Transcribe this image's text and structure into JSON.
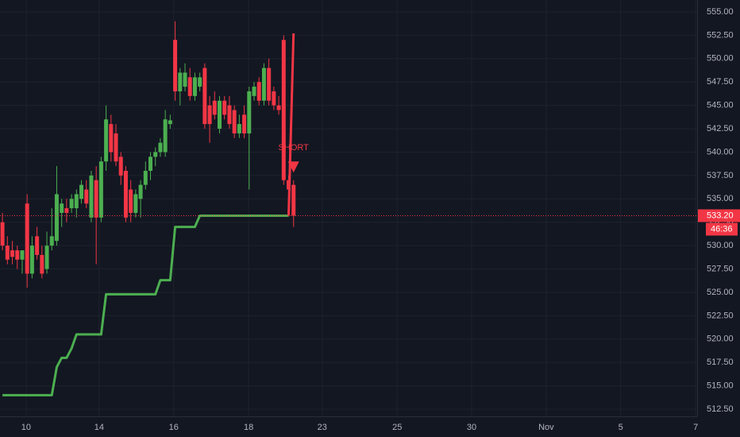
{
  "chart_data": {
    "type": "candlestick",
    "xlim": [
      0,
      141.3
    ],
    "ylim": [
      511.74,
      556.27
    ],
    "x": [
      0.5,
      1.5,
      2.5,
      3.5,
      4.5,
      5.5,
      6.5,
      7.5,
      8.5,
      9.5,
      10.5,
      11.5,
      12.5,
      13.5,
      14.5,
      15.5,
      16.5,
      17.5,
      18.5,
      19.5,
      20.5,
      21.5,
      22.5,
      23.5,
      24.5,
      25.5,
      26.5,
      27.5,
      28.5,
      29.5,
      30.5,
      31.5,
      32.5,
      33.5,
      34.5,
      35.5,
      36.5,
      37.5,
      38.5,
      39.5,
      40.5,
      41.5,
      42.5,
      43.5,
      44.5,
      45.5,
      46.5,
      47.5,
      48.5,
      49.5,
      50.5,
      51.5,
      52.5,
      53.5,
      54.5,
      55.5,
      56.5,
      57.5,
      58.5,
      59.5
    ],
    "open": [
      532.5,
      530,
      529.5,
      529.5,
      528.5,
      534.5,
      527,
      531,
      529,
      527.5,
      530,
      530.5,
      533.5,
      534,
      534,
      534,
      535,
      536,
      533,
      537,
      533,
      539,
      543,
      542,
      539.5,
      538,
      536,
      533.5,
      535,
      536.5,
      538,
      539.5,
      540,
      540,
      543,
      552,
      546.5,
      547,
      548,
      546,
      547,
      549,
      545,
      545.5,
      542.5,
      545.5,
      545,
      544.5,
      542,
      544,
      542,
      546,
      547.5,
      545.5,
      549,
      546.5,
      545,
      552,
      537,
      536.5
    ],
    "high": [
      533.5,
      531,
      530.5,
      530,
      529.5,
      535.5,
      531,
      532,
      530,
      531.5,
      534,
      538.5,
      535,
      535,
      535.5,
      536,
      537,
      537,
      538,
      538.5,
      539.5,
      545,
      544,
      543,
      540,
      538.5,
      537,
      536,
      537,
      539,
      540,
      540.5,
      541.5,
      544.5,
      544,
      554,
      549,
      549.5,
      549,
      548.5,
      548.5,
      549.5,
      546,
      546.5,
      546,
      546,
      546,
      545,
      544,
      545,
      547,
      547.5,
      548,
      549.5,
      550,
      547,
      546,
      552.5,
      537.5,
      537
    ],
    "low": [
      529.5,
      528,
      528,
      527.5,
      527,
      525.5,
      526.5,
      528.5,
      526.5,
      527,
      529.5,
      530,
      532,
      532.5,
      533.5,
      533,
      534.5,
      534,
      532.5,
      528,
      532.5,
      538,
      539,
      538.5,
      536.5,
      532.5,
      532.5,
      533,
      533,
      536,
      537,
      538.5,
      539.5,
      539.5,
      542.5,
      545.5,
      545,
      546.5,
      545.5,
      545.5,
      546.5,
      542.5,
      541,
      543.5,
      542,
      543.5,
      542.5,
      541.5,
      541.5,
      541.5,
      536,
      545.5,
      545,
      545,
      545,
      544.5,
      544,
      536.5,
      535.5,
      532
    ],
    "close": [
      530,
      528.5,
      528.8,
      528.5,
      529.5,
      527,
      530,
      529,
      527,
      530,
      531,
      535.5,
      534.5,
      533.5,
      535,
      535.5,
      536.5,
      534.5,
      537.5,
      533,
      539,
      543.5,
      540,
      539,
      537.5,
      533,
      533.5,
      535.5,
      536.5,
      538,
      539.5,
      540,
      541,
      543.5,
      543.4,
      546.5,
      548.5,
      548.5,
      546,
      548,
      548,
      543,
      543,
      544,
      545.5,
      544,
      543,
      542,
      543,
      542,
      546.5,
      547,
      545.5,
      549,
      545.5,
      545,
      544.5,
      537,
      536,
      533.2
    ],
    "up_color": "#4caf50",
    "down_color": "#f23645",
    "series": [
      {
        "color": "#4caf50",
        "values": [
          514,
          514,
          514,
          514,
          514,
          514,
          514,
          514,
          514,
          514,
          514,
          517,
          518,
          518,
          519,
          520.5,
          520.5,
          520.5,
          520.5,
          520.5,
          520.5,
          524.8,
          524.8,
          524.8,
          524.8,
          524.8,
          524.8,
          524.8,
          524.8,
          524.8,
          524.8,
          524.8,
          526.3,
          526.3,
          526.3,
          532,
          532,
          532,
          532,
          532,
          533.2,
          533.2,
          533.2,
          533.2,
          533.2,
          533.2,
          533.2,
          533.2,
          533.2,
          533.2,
          533.2,
          533.2,
          533.2,
          533.2,
          533.2,
          533.2,
          533.2,
          533.2,
          533.2,
          null
        ]
      },
      {
        "color": "#f23645",
        "values": [
          null,
          null,
          null,
          null,
          null,
          null,
          null,
          null,
          null,
          null,
          null,
          null,
          null,
          null,
          null,
          null,
          null,
          null,
          null,
          null,
          null,
          null,
          null,
          null,
          null,
          null,
          null,
          null,
          null,
          null,
          null,
          null,
          null,
          null,
          null,
          null,
          null,
          null,
          null,
          null,
          null,
          null,
          null,
          null,
          null,
          null,
          null,
          null,
          null,
          null,
          null,
          null,
          null,
          null,
          null,
          null,
          null,
          null,
          533.2,
          552.7
        ]
      }
    ],
    "signal": {
      "label": "SHORT",
      "x": 59.5,
      "y": 538.4,
      "color": "#f23645"
    },
    "last_price": {
      "value": 533.2,
      "label": "533.20"
    },
    "countdown": "46:36",
    "grid": true,
    "xticks": [
      {
        "value": 5.3,
        "label": "10"
      },
      {
        "value": 20.1,
        "label": "14"
      },
      {
        "value": 35.2,
        "label": "16"
      },
      {
        "value": 50.4,
        "label": "18"
      },
      {
        "value": 65.3,
        "label": "23"
      },
      {
        "value": 80.5,
        "label": "25"
      },
      {
        "value": 95.6,
        "label": "30"
      },
      {
        "value": 110.7,
        "label": "Nov"
      },
      {
        "value": 125.8,
        "label": "5"
      },
      {
        "value": 141,
        "label": "7"
      }
    ],
    "yticks": [
      {
        "value": 512.5,
        "label": "512.50"
      },
      {
        "value": 515,
        "label": "515.00"
      },
      {
        "value": 517.5,
        "label": "517.50"
      },
      {
        "value": 520,
        "label": "520.00"
      },
      {
        "value": 522.5,
        "label": "522.50"
      },
      {
        "value": 525,
        "label": "525.00"
      },
      {
        "value": 527.5,
        "label": "527.50"
      },
      {
        "value": 530,
        "label": "530.00"
      },
      {
        "value": 532.5,
        "label": "532.50"
      },
      {
        "value": 535,
        "label": "535.00"
      },
      {
        "value": 537.5,
        "label": "537.50"
      },
      {
        "value": 540,
        "label": "540.00"
      },
      {
        "value": 542.5,
        "label": "542.50"
      },
      {
        "value": 545,
        "label": "545.00"
      },
      {
        "value": 547.5,
        "label": "547.50"
      },
      {
        "value": 550,
        "label": "550.00"
      },
      {
        "value": 552.5,
        "label": "552.50"
      },
      {
        "value": 555,
        "label": "555.00"
      }
    ]
  }
}
